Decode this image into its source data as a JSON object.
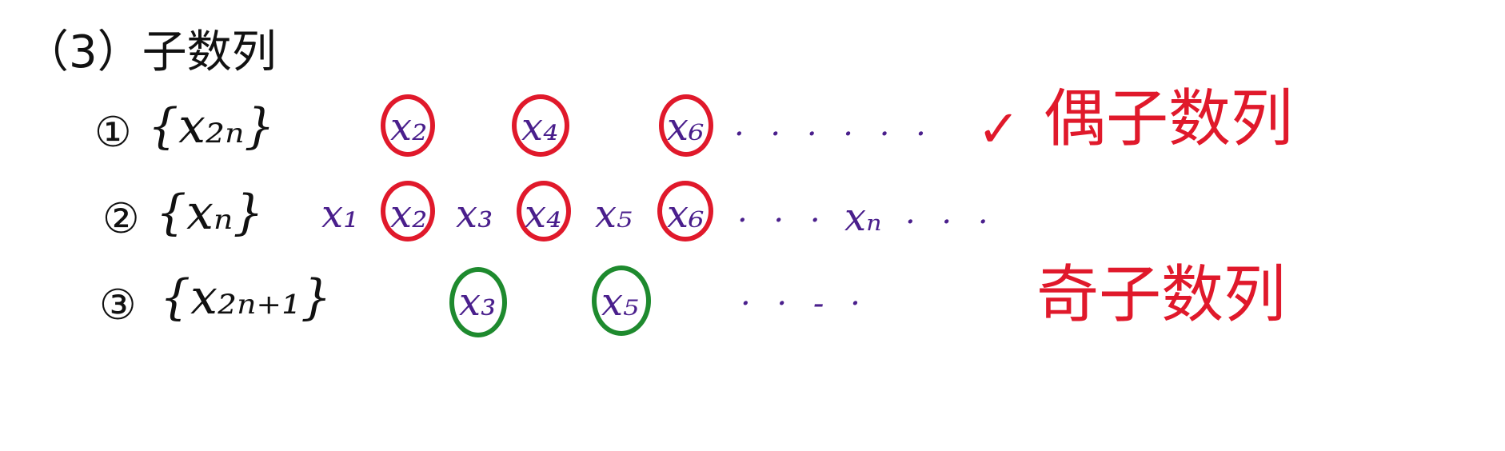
{
  "heading": "（3）子数列",
  "rows": [
    {
      "number": "①",
      "sequence": "{x₂ₙ}",
      "terms": [
        "x₂",
        "x₄",
        "x₆"
      ],
      "dots": "· · · · · ·",
      "check": "✓",
      "label": "偶子数列"
    },
    {
      "number": "②",
      "sequence": "{xₙ}",
      "terms": [
        "x₁",
        "x₂",
        "x₃",
        "x₄",
        "x₅",
        "x₆"
      ],
      "dots": "· · ·",
      "term_n": "xₙ",
      "dots_end": "· · ·"
    },
    {
      "number": "③",
      "sequence": "{x₂ₙ₊₁}",
      "terms": [
        "x₃",
        "x₅"
      ],
      "dots": "· · - ·",
      "label": "奇子数列"
    }
  ],
  "colors": {
    "red_circle": "#e0192b",
    "green_circle": "#1e8a2e",
    "purple_ink": "#4a1f8c",
    "black_ink": "#111111"
  }
}
